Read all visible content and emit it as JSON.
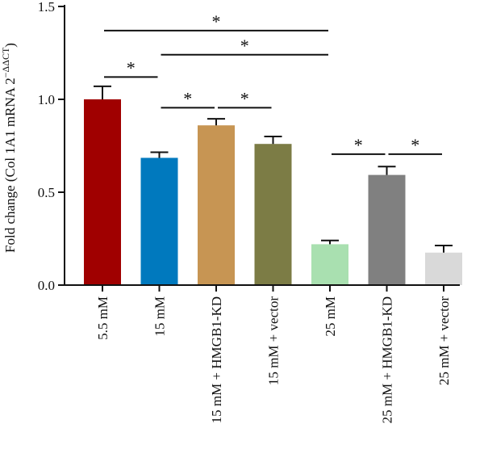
{
  "chart_data": {
    "type": "bar",
    "title": "",
    "ylabel": "Fold change (Col 1A1 mRNA 2",
    "ylabel_superscript": "−ΔΔCT",
    "ylabel_close": ")",
    "xlabel": "",
    "ylim": [
      0,
      1.5
    ],
    "yticks": [
      0.0,
      0.5,
      1.0,
      1.5
    ],
    "ytick_labels": [
      "0.0",
      "0.5",
      "1.0",
      "1.5"
    ],
    "grid": false,
    "categories": [
      "5.5 mM",
      "15 mM",
      "15 mM + HMGB1-KD",
      "15 mM + vector",
      "25 mM",
      "25 mM + HMGB1-KD",
      "25 mM + vector"
    ],
    "values": [
      1.0,
      0.685,
      0.86,
      0.76,
      0.22,
      0.593,
      0.175
    ],
    "errors": [
      0.07,
      0.03,
      0.035,
      0.04,
      0.02,
      0.045,
      0.038
    ],
    "colors": [
      "#a00000",
      "#0079be",
      "#c79553",
      "#7c7c45",
      "#a9e0b0",
      "#808080",
      "#d9d9d9"
    ],
    "significance": [
      {
        "from": 0,
        "to": 4,
        "level": 1.37,
        "label": "*"
      },
      {
        "from": 1,
        "to": 4,
        "level": 1.24,
        "label": "*"
      },
      {
        "from": 0,
        "to": 1,
        "level": 1.12,
        "label": "*"
      },
      {
        "from": 1,
        "to": 2,
        "level": 0.955,
        "label": "*"
      },
      {
        "from": 2,
        "to": 3,
        "level": 0.955,
        "label": "*"
      },
      {
        "from": 4,
        "to": 5,
        "level": 0.705,
        "label": "*"
      },
      {
        "from": 5,
        "to": 6,
        "level": 0.705,
        "label": "*"
      }
    ]
  }
}
